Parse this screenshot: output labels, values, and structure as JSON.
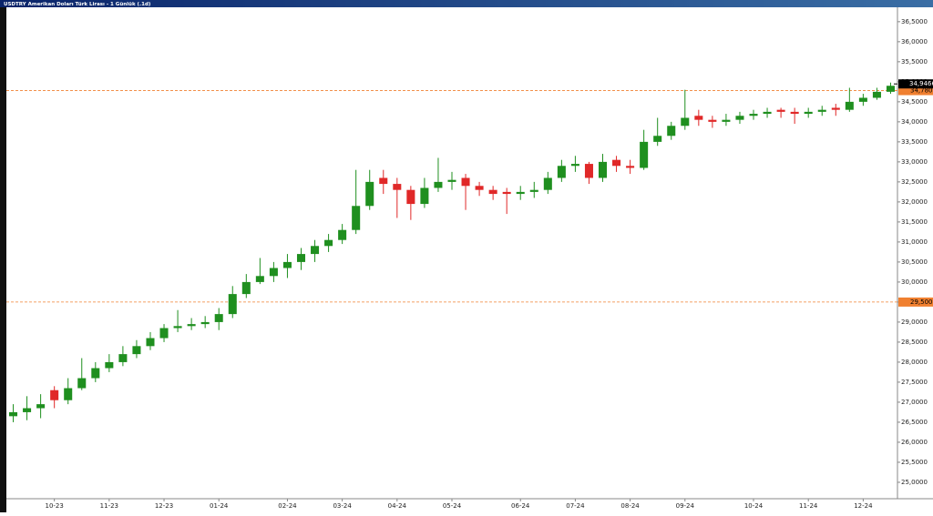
{
  "chart_data": {
    "type": "candlestick",
    "title": "USDTRY Amerikan Doları Türk Lirası - 1 Günlük (.1d)",
    "categories": [
      null,
      null,
      null,
      "10-23",
      null,
      null,
      null,
      "11-23",
      null,
      null,
      null,
      "12-23",
      null,
      null,
      null,
      "01-24",
      null,
      null,
      null,
      null,
      "02-24",
      null,
      null,
      null,
      "03-24",
      null,
      null,
      null,
      "04-24",
      null,
      null,
      null,
      "05-24",
      null,
      null,
      null,
      null,
      "06-24",
      null,
      null,
      null,
      "07-24",
      null,
      null,
      null,
      "08-24",
      null,
      null,
      null,
      "09-24",
      null,
      null,
      null,
      null,
      "10-24",
      null,
      null,
      null,
      "11-24",
      null,
      null,
      null,
      "12-24",
      null,
      null
    ],
    "open": [
      26.65,
      26.75,
      26.85,
      27.3,
      27.05,
      27.35,
      27.6,
      27.85,
      28.0,
      28.2,
      28.4,
      28.6,
      28.85,
      28.9,
      28.95,
      29.0,
      29.2,
      29.7,
      30.0,
      30.15,
      30.35,
      30.5,
      30.7,
      30.9,
      31.05,
      31.3,
      31.9,
      32.6,
      32.45,
      32.3,
      31.95,
      32.35,
      32.5,
      32.6,
      32.4,
      32.3,
      32.25,
      32.2,
      32.25,
      32.3,
      32.6,
      32.9,
      32.95,
      32.6,
      33.05,
      32.9,
      32.85,
      33.5,
      33.65,
      33.9,
      34.15,
      34.05,
      34.0,
      34.05,
      34.15,
      34.2,
      34.3,
      34.25,
      34.2,
      34.25,
      34.35,
      34.3,
      34.5,
      34.6,
      34.75
    ],
    "high": [
      26.95,
      27.15,
      27.2,
      27.4,
      27.6,
      28.1,
      28.0,
      28.2,
      28.4,
      28.55,
      28.75,
      28.95,
      29.3,
      29.1,
      29.15,
      29.35,
      29.9,
      30.2,
      30.6,
      30.5,
      30.7,
      30.85,
      31.05,
      31.2,
      31.45,
      32.8,
      32.8,
      32.8,
      32.6,
      32.4,
      32.6,
      33.1,
      32.75,
      32.7,
      32.5,
      32.4,
      32.35,
      32.4,
      32.5,
      32.75,
      33.05,
      33.15,
      33.0,
      33.2,
      33.15,
      33.05,
      33.8,
      34.1,
      34.0,
      34.8,
      34.3,
      34.15,
      34.2,
      34.25,
      34.3,
      34.35,
      34.35,
      34.35,
      34.35,
      34.4,
      34.45,
      34.85,
      34.7,
      34.85,
      34.98
    ],
    "low": [
      26.5,
      26.55,
      26.6,
      26.85,
      26.95,
      27.3,
      27.5,
      27.75,
      27.9,
      28.1,
      28.3,
      28.5,
      28.75,
      28.8,
      28.85,
      28.8,
      29.1,
      29.6,
      29.95,
      30.0,
      30.1,
      30.3,
      30.5,
      30.75,
      30.95,
      31.2,
      31.8,
      32.2,
      31.6,
      31.55,
      31.85,
      32.25,
      32.3,
      31.8,
      32.15,
      32.05,
      31.7,
      32.05,
      32.1,
      32.2,
      32.5,
      32.75,
      32.45,
      32.5,
      32.75,
      32.7,
      32.8,
      33.4,
      33.55,
      33.8,
      33.9,
      33.85,
      33.9,
      33.95,
      34.05,
      34.1,
      34.1,
      33.95,
      34.1,
      34.15,
      34.15,
      34.25,
      34.4,
      34.55,
      34.7
    ],
    "close": [
      26.75,
      26.85,
      26.95,
      27.05,
      27.35,
      27.6,
      27.85,
      28.0,
      28.2,
      28.4,
      28.6,
      28.85,
      28.9,
      28.95,
      29.0,
      29.2,
      29.7,
      30.0,
      30.15,
      30.35,
      30.5,
      30.7,
      30.9,
      31.05,
      31.3,
      31.9,
      32.5,
      32.45,
      32.3,
      31.95,
      32.35,
      32.5,
      32.55,
      32.4,
      32.3,
      32.2,
      32.2,
      32.25,
      32.3,
      32.6,
      32.9,
      32.95,
      32.6,
      33.0,
      32.9,
      32.85,
      33.5,
      33.65,
      33.9,
      34.1,
      34.05,
      34.0,
      34.05,
      34.15,
      34.2,
      34.25,
      34.25,
      34.2,
      34.25,
      34.3,
      34.3,
      34.5,
      34.6,
      34.75,
      34.9
    ],
    "up_color": "#1f8f1f",
    "down_color": "#e02828",
    "ylim": [
      24.59,
      36.86
    ],
    "yticks": [
      {
        "value": 25,
        "label": "25,0000"
      },
      {
        "value": 25.5,
        "label": "25,5000"
      },
      {
        "value": 26,
        "label": "26,0000"
      },
      {
        "value": 26.5,
        "label": "26,5000"
      },
      {
        "value": 27,
        "label": "27,0000"
      },
      {
        "value": 27.5,
        "label": "27,5000"
      },
      {
        "value": 28,
        "label": "28,0000"
      },
      {
        "value": 28.5,
        "label": "28,5000"
      },
      {
        "value": 29,
        "label": "29,0000"
      },
      {
        "value": 29.5,
        "label": "29,5000"
      },
      {
        "value": 30,
        "label": "30,0000"
      },
      {
        "value": 30.5,
        "label": "30,5000"
      },
      {
        "value": 31,
        "label": "31,0000"
      },
      {
        "value": 31.5,
        "label": "31,5000"
      },
      {
        "value": 32,
        "label": "32,0000"
      },
      {
        "value": 32.5,
        "label": "32,5000"
      },
      {
        "value": 33,
        "label": "33,0000"
      },
      {
        "value": 33.5,
        "label": "33,5000"
      },
      {
        "value": 34,
        "label": "34,0000"
      },
      {
        "value": 34.5,
        "label": "34,5000"
      },
      {
        "value": 35,
        "label": "35,0000"
      },
      {
        "value": 35.5,
        "label": "35,5000"
      },
      {
        "value": 36,
        "label": "36,0000"
      },
      {
        "value": 36.5,
        "label": "36,5000"
      }
    ],
    "hlines": [
      {
        "value": 34.78,
        "label": "34,780"
      },
      {
        "value": 29.5,
        "label": "29,500"
      }
    ],
    "hline_color": "#f08030",
    "last_price": {
      "value": 34.9466,
      "label": "34,9466"
    }
  }
}
